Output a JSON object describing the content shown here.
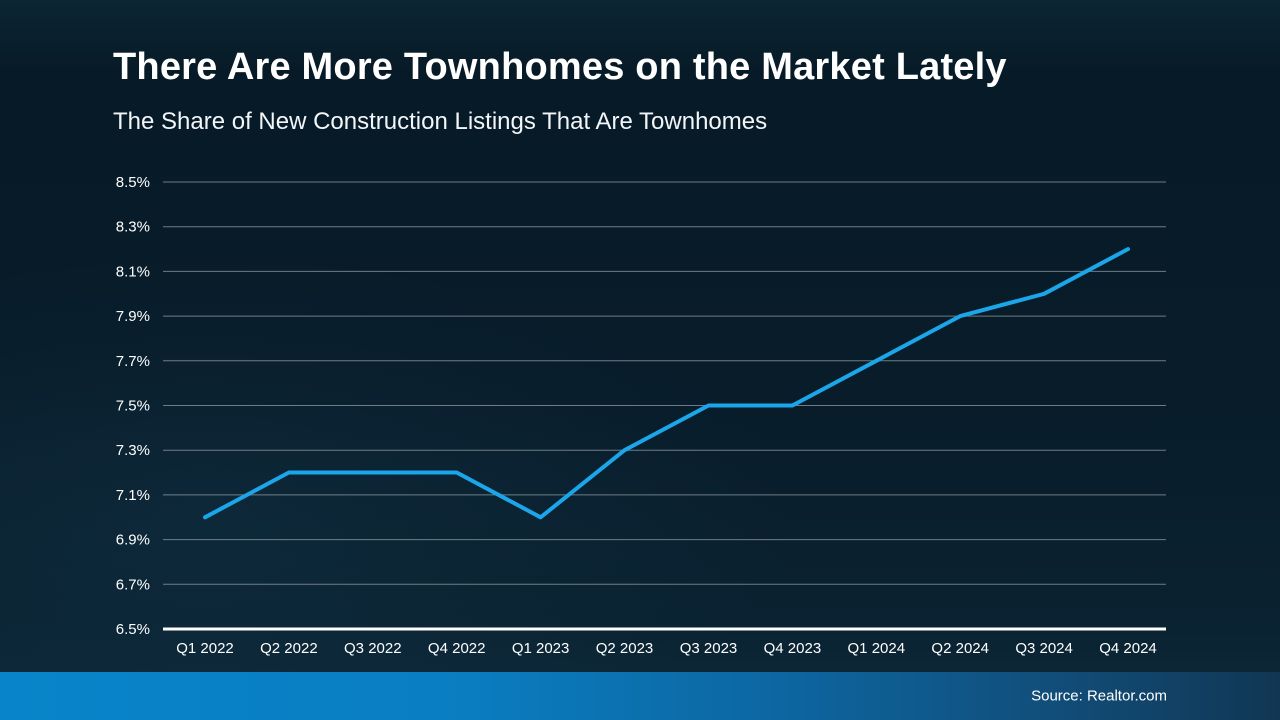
{
  "slide": {
    "title": "There Are More Townhomes on the Market Lately",
    "subtitle": "The Share of New Construction Listings That Are Townhomes",
    "source": "Source: Realtor.com"
  },
  "chart_data": {
    "type": "line",
    "title": "There Are More Townhomes on the Market Lately",
    "subtitle": "The Share of New Construction Listings That Are Townhomes",
    "categories": [
      "Q1 2022",
      "Q2 2022",
      "Q3 2022",
      "Q4 2022",
      "Q1 2023",
      "Q2 2023",
      "Q3 2023",
      "Q4 2023",
      "Q1 2024",
      "Q2 2024",
      "Q3 2024",
      "Q4 2024"
    ],
    "series": [
      {
        "name": "Townhome share of new construction listings",
        "values": [
          7.0,
          7.2,
          7.2,
          7.2,
          7.0,
          7.3,
          7.5,
          7.5,
          7.7,
          7.9,
          8.0,
          8.2
        ]
      }
    ],
    "unit": "%",
    "ylim": [
      6.5,
      8.5
    ],
    "ytick_step": 0.2,
    "ytick_labels": [
      "8.5%",
      "8.3%",
      "8.1%",
      "7.9%",
      "7.7%",
      "7.5%",
      "7.3%",
      "7.1%",
      "6.9%",
      "6.7%",
      "6.5%"
    ],
    "grid": true,
    "legend_position": "none",
    "colors": {
      "line": "#1ba6ea",
      "gridline": "#9aa4ab",
      "axis": "#ffffff",
      "text": "#ffffff",
      "background": "#081c29",
      "footer_left": "#0884ca",
      "footer_right": "#113653"
    }
  }
}
